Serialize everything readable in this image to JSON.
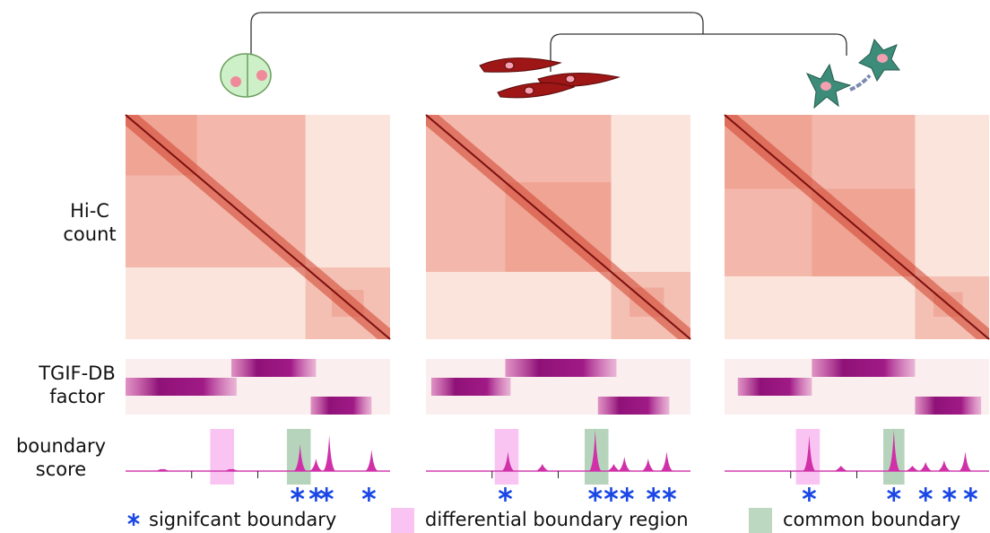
{
  "row_labels": {
    "hic": [
      "Hi-C",
      "count"
    ],
    "factor": [
      "TGIF-DB",
      "factor"
    ],
    "score": [
      "boundary",
      "score"
    ]
  },
  "legend": [
    "signifcant boundary",
    "differential boundary region",
    "common boundary"
  ]
}
